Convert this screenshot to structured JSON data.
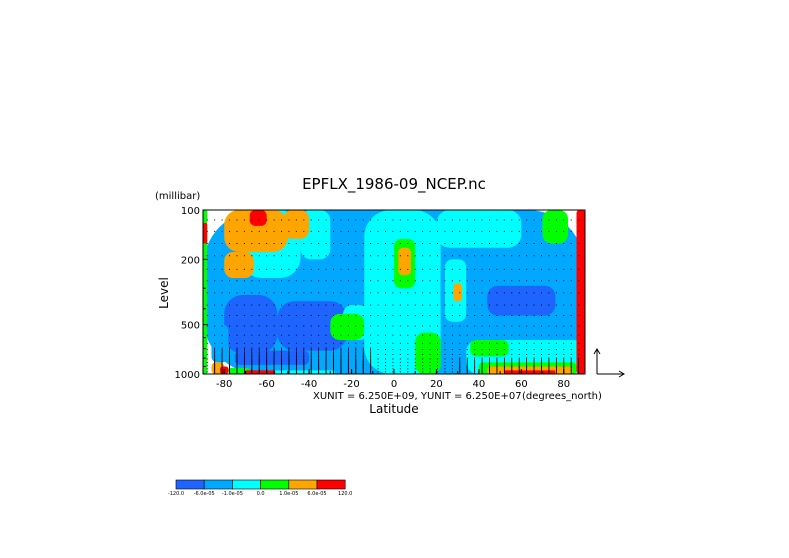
{
  "chart_data": {
    "type": "heatmap",
    "title": "EPFLX_1986-09_NCEP.nc",
    "xlabel": "Latitude",
    "xunit": "(degrees_north)",
    "ylabel": "Level",
    "yunit": "(millibar)",
    "xlim": [
      -90,
      90
    ],
    "ylim": [
      1000,
      100
    ],
    "yscale": "log",
    "x_ticks": [
      -80,
      -60,
      -40,
      -20,
      0,
      20,
      40,
      60,
      80
    ],
    "x_tick_labels": [
      "-80",
      "-60",
      "-40",
      "-20",
      "0",
      "20",
      "40",
      "60",
      "80"
    ],
    "y_ticks": [
      100,
      200,
      500,
      1000
    ],
    "y_tick_labels": [
      "100",
      "200",
      "500",
      "1000"
    ],
    "vector_scale_note": "XUNIT = 6.250E+09, YUNIT = 6.250E+07",
    "levels": [
      -120.0,
      -6e-05,
      -1e-05,
      0.0,
      1e-05,
      6e-05,
      120.0
    ],
    "colorbar_labels": [
      "-120.0",
      "-6.0e-05",
      "-1.0e-05",
      "0.0",
      "1.0e-05",
      "6.0e-05",
      "120.0"
    ],
    "colors": [
      "#1e64ff",
      "#00a8ff",
      "#00ffff",
      "#00ff00",
      "#ffa500",
      "#ff0000"
    ],
    "regions": [
      {
        "category": 1,
        "lat": [
          -90,
          90
        ],
        "p": [
          100,
          1000
        ]
      },
      {
        "category": 2,
        "lat": [
          -72,
          -44
        ],
        "p": [
          100,
          260
        ]
      },
      {
        "category": 2,
        "lat": [
          -44,
          -30
        ],
        "p": [
          100,
          200
        ]
      },
      {
        "category": 4,
        "lat": [
          -80,
          -50
        ],
        "p": [
          100,
          180
        ]
      },
      {
        "category": 4,
        "lat": [
          -80,
          -66
        ],
        "p": [
          180,
          260
        ]
      },
      {
        "category": 4,
        "lat": [
          -52,
          -40
        ],
        "p": [
          100,
          150
        ]
      },
      {
        "category": 5,
        "lat": [
          -68,
          -60
        ],
        "p": [
          100,
          125
        ]
      },
      {
        "category": 0,
        "lat": [
          -80,
          -55
        ],
        "p": [
          330,
          750
        ]
      },
      {
        "category": 0,
        "lat": [
          -55,
          -22
        ],
        "p": [
          360,
          720
        ]
      },
      {
        "category": 1,
        "lat": [
          -86,
          -78
        ],
        "p": [
          500,
          850
        ]
      },
      {
        "category": 2,
        "lat": [
          -24,
          -12
        ],
        "p": [
          380,
          620
        ]
      },
      {
        "category": 3,
        "lat": [
          -30,
          -14
        ],
        "p": [
          430,
          620
        ]
      },
      {
        "category": 0,
        "lat": [
          -75,
          -40
        ],
        "p": [
          720,
          880
        ]
      },
      {
        "category": 1,
        "lat": [
          -66,
          -32
        ],
        "p": [
          880,
          950
        ]
      },
      {
        "category": 2,
        "lat": [
          -60,
          -28
        ],
        "p": [
          950,
          1000
        ]
      },
      {
        "category": 3,
        "lat": [
          -78,
          -68
        ],
        "p": [
          920,
          1000
        ]
      },
      {
        "category": 5,
        "lat": [
          -70,
          -56
        ],
        "p": [
          950,
          1000
        ]
      },
      {
        "category": 4,
        "lat": [
          -86,
          -80
        ],
        "p": [
          850,
          1000
        ]
      },
      {
        "category": 5,
        "lat": [
          -82,
          -78
        ],
        "p": [
          900,
          1000
        ]
      },
      {
        "category": 2,
        "lat": [
          -14,
          22
        ],
        "p": [
          100,
          1000
        ]
      },
      {
        "category": 3,
        "lat": [
          0,
          10
        ],
        "p": [
          150,
          300
        ]
      },
      {
        "category": 4,
        "lat": [
          2,
          8
        ],
        "p": [
          170,
          250
        ]
      },
      {
        "category": 3,
        "lat": [
          10,
          22
        ],
        "p": [
          560,
          1000
        ]
      },
      {
        "category": 1,
        "lat": [
          22,
          88
        ],
        "p": [
          150,
          580
        ]
      },
      {
        "category": 2,
        "lat": [
          24,
          34
        ],
        "p": [
          200,
          480
        ]
      },
      {
        "category": 4,
        "lat": [
          28,
          32
        ],
        "p": [
          280,
          360
        ]
      },
      {
        "category": 0,
        "lat": [
          44,
          76
        ],
        "p": [
          290,
          440
        ]
      },
      {
        "category": 2,
        "lat": [
          20,
          60
        ],
        "p": [
          100,
          170
        ]
      },
      {
        "category": 3,
        "lat": [
          70,
          82
        ],
        "p": [
          100,
          160
        ]
      },
      {
        "category": 2,
        "lat": [
          34,
          90
        ],
        "p": [
          620,
          1000
        ]
      },
      {
        "category": 3,
        "lat": [
          36,
          54
        ],
        "p": [
          620,
          780
        ]
      },
      {
        "category": 3,
        "lat": [
          40,
          86
        ],
        "p": [
          850,
          1000
        ]
      },
      {
        "category": 4,
        "lat": [
          44,
          84
        ],
        "p": [
          900,
          1000
        ]
      },
      {
        "category": 5,
        "lat": [
          52,
          76
        ],
        "p": [
          950,
          1000
        ]
      },
      {
        "category": 5,
        "lat": [
          86,
          90
        ],
        "p": [
          100,
          1000
        ]
      },
      {
        "category": 3,
        "lat": [
          -90,
          -88
        ],
        "p": [
          100,
          1000
        ]
      },
      {
        "category": 5,
        "lat": [
          -90,
          -88
        ],
        "p": [
          120,
          160
        ]
      }
    ]
  }
}
